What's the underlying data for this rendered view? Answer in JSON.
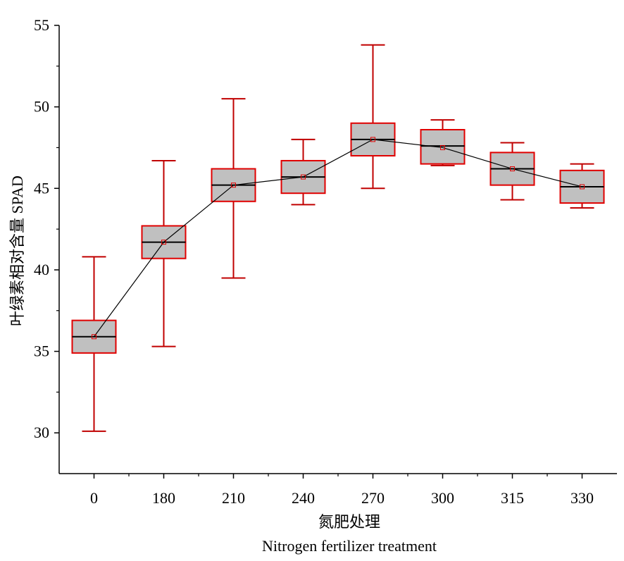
{
  "chart_data": {
    "type": "box",
    "title": "",
    "xlabel_cn": "氮肥处理",
    "xlabel_en": "Nitrogen fertilizer treatment",
    "ylabel": "叶绿素相对含量 SPAD",
    "ylim": [
      27.5,
      55
    ],
    "yticks": [
      30,
      35,
      40,
      45,
      50,
      55
    ],
    "categories": [
      "0",
      "180",
      "210",
      "240",
      "270",
      "300",
      "315",
      "330"
    ],
    "boxes": [
      {
        "category": "0",
        "min": 30.1,
        "q1": 34.9,
        "median": 35.9,
        "q3": 36.9,
        "max": 40.8,
        "mean": 35.9
      },
      {
        "category": "180",
        "min": 35.3,
        "q1": 40.7,
        "median": 41.7,
        "q3": 42.7,
        "max": 46.7,
        "mean": 41.7
      },
      {
        "category": "210",
        "min": 39.5,
        "q1": 44.2,
        "median": 45.2,
        "q3": 46.2,
        "max": 50.5,
        "mean": 45.2
      },
      {
        "category": "240",
        "min": 44.0,
        "q1": 44.7,
        "median": 45.7,
        "q3": 46.7,
        "max": 48.0,
        "mean": 45.7
      },
      {
        "category": "270",
        "min": 45.0,
        "q1": 47.0,
        "median": 48.0,
        "q3": 49.0,
        "max": 53.8,
        "mean": 48.0
      },
      {
        "category": "300",
        "min": 46.4,
        "q1": 46.5,
        "median": 47.6,
        "q3": 48.6,
        "max": 49.2,
        "mean": 47.5
      },
      {
        "category": "315",
        "min": 44.3,
        "q1": 45.2,
        "median": 46.2,
        "q3": 47.2,
        "max": 47.8,
        "mean": 46.2
      },
      {
        "category": "330",
        "min": 43.8,
        "q1": 44.1,
        "median": 45.1,
        "q3": 46.1,
        "max": 46.5,
        "mean": 45.1
      }
    ],
    "mean_line": true,
    "grid": false,
    "colors": {
      "box_fill": "#c0c0c0",
      "box_edge": "#e00000",
      "whisker": "#c00000",
      "median": "#000000",
      "mean_marker": "#e00000",
      "mean_line": "#000000",
      "axis": "#000000"
    }
  }
}
